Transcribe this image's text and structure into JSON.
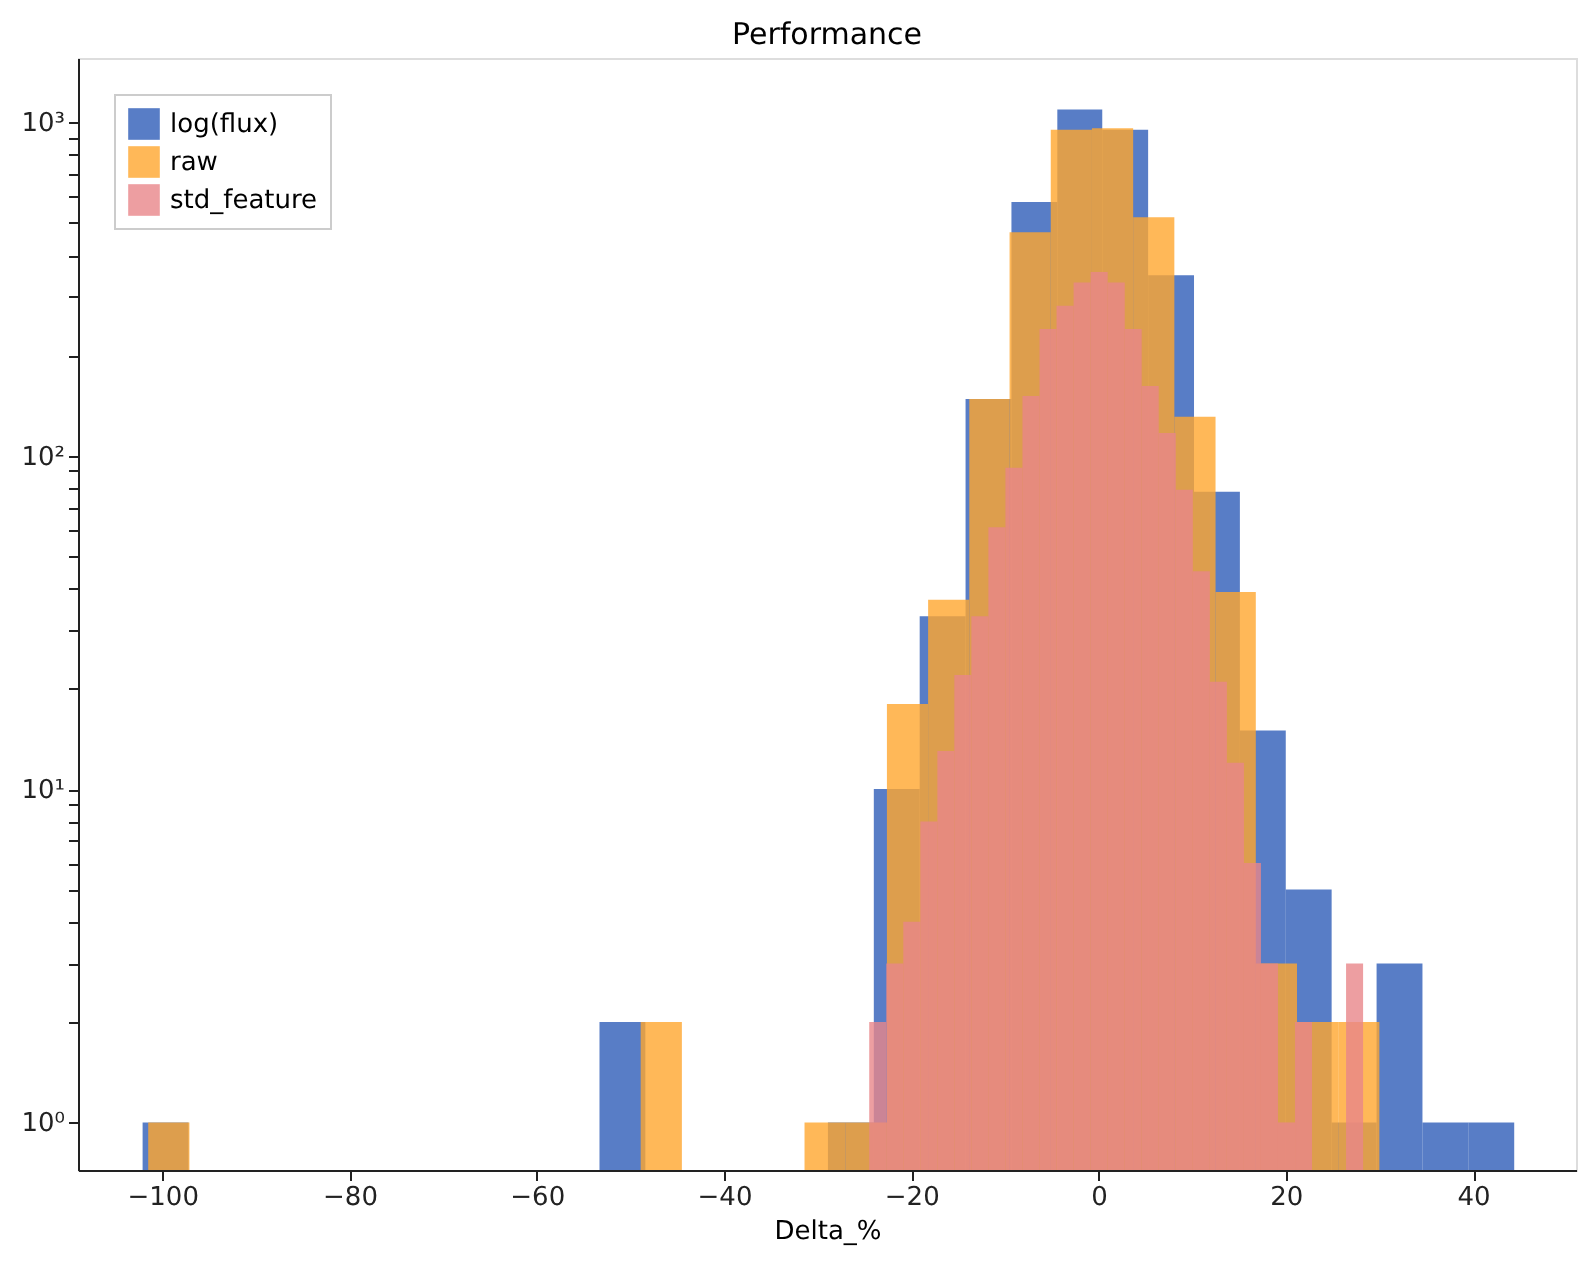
{
  "chart_data": {
    "type": "histogram",
    "title": "Performance",
    "xlabel": "Delta_%",
    "bins": [
      -102.1,
      -97.2,
      -53.3,
      -48.4,
      -28.9,
      -24.0,
      -19.1,
      -14.2,
      -9.3,
      -4.4,
      0.4,
      5.3,
      10.2,
      15.1,
      20.0,
      24.9,
      29.7,
      34.6,
      39.5,
      44.4
    ],
    "series": [
      {
        "name": "log(flux)",
        "color": "#2e5db8",
        "values": [
          1,
          null,
          2,
          null,
          1,
          10,
          33,
          148,
          577,
          1093,
          950,
          348,
          78,
          15,
          5,
          1,
          3,
          1,
          1
        ]
      },
      {
        "name": "raw",
        "color": "#ffa62e",
        "bins": [
          -101.5,
          -97.1,
          -48.9,
          -44.5,
          -31.4,
          -27.0,
          -22.6,
          -18.2,
          -13.8,
          -9.5,
          -5.1,
          -0.7,
          3.7,
          8.1,
          12.5,
          16.8,
          21.2,
          25.6,
          30.0
        ],
        "values": [
          1,
          null,
          2,
          null,
          1,
          1,
          18,
          37,
          148,
          468,
          950,
          960,
          519,
          131,
          39,
          3,
          2,
          2
        ]
      },
      {
        "name": "std_feature",
        "color": "#e8868a",
        "bins": [
          -24.49,
          -22.67,
          -20.85,
          -19.03,
          -17.21,
          -15.4,
          -13.58,
          -11.76,
          -9.94,
          -8.12,
          -6.3,
          -4.48,
          -2.66,
          -0.84,
          0.98,
          2.8,
          4.61,
          6.43,
          8.25,
          10.07,
          11.89,
          13.71,
          15.53,
          17.35,
          19.17,
          20.99,
          22.8,
          24.62,
          26.44,
          28.26,
          30.08
        ],
        "values": [
          2,
          3,
          4,
          8,
          13,
          22,
          33,
          61,
          92,
          151,
          240,
          282,
          331,
          356,
          331,
          240,
          162,
          117,
          79,
          45,
          21,
          12,
          6,
          3,
          1,
          2,
          null,
          null,
          3,
          null
        ]
      }
    ],
    "log": true,
    "xlim": [
      -109,
      51
    ],
    "ylim": [
      0.72,
      1560
    ],
    "xticks": [
      {
        "value": -100,
        "label": "−100"
      },
      {
        "value": -80,
        "label": "−80"
      },
      {
        "value": -60,
        "label": "−60"
      },
      {
        "value": -40,
        "label": "−40"
      },
      {
        "value": -20,
        "label": "−20"
      },
      0,
      20,
      40
    ],
    "yticks": [
      {
        "value": 1,
        "label": "10⁰"
      },
      {
        "value": 2,
        "label": null
      },
      {
        "value": 3,
        "label": null
      },
      {
        "value": 4,
        "label": null
      },
      {
        "value": 5,
        "label": null
      },
      {
        "value": 6,
        "label": null
      },
      {
        "value": 7,
        "label": null
      },
      {
        "value": 8,
        "label": null
      },
      {
        "value": 9,
        "label": null
      },
      {
        "value": 10,
        "label": "10¹"
      },
      {
        "value": 20,
        "label": null
      },
      {
        "value": 30,
        "label": null
      },
      {
        "value": 40,
        "label": null
      },
      {
        "value": 50,
        "label": null
      },
      {
        "value": 60,
        "label": null
      },
      {
        "value": 70,
        "label": null
      },
      {
        "value": 80,
        "label": null
      },
      {
        "value": 90,
        "label": null
      },
      {
        "value": 100,
        "label": "10²"
      },
      {
        "value": 200,
        "label": null
      },
      {
        "value": 300,
        "label": null
      },
      {
        "value": 400,
        "label": null
      },
      {
        "value": 500,
        "label": null
      },
      {
        "value": 600,
        "label": null
      },
      {
        "value": 700,
        "label": null
      },
      {
        "value": 800,
        "label": null
      },
      {
        "value": 900,
        "label": null
      },
      {
        "value": 1000,
        "label": "10³"
      }
    ],
    "legend": "top left",
    "grid": false
  }
}
